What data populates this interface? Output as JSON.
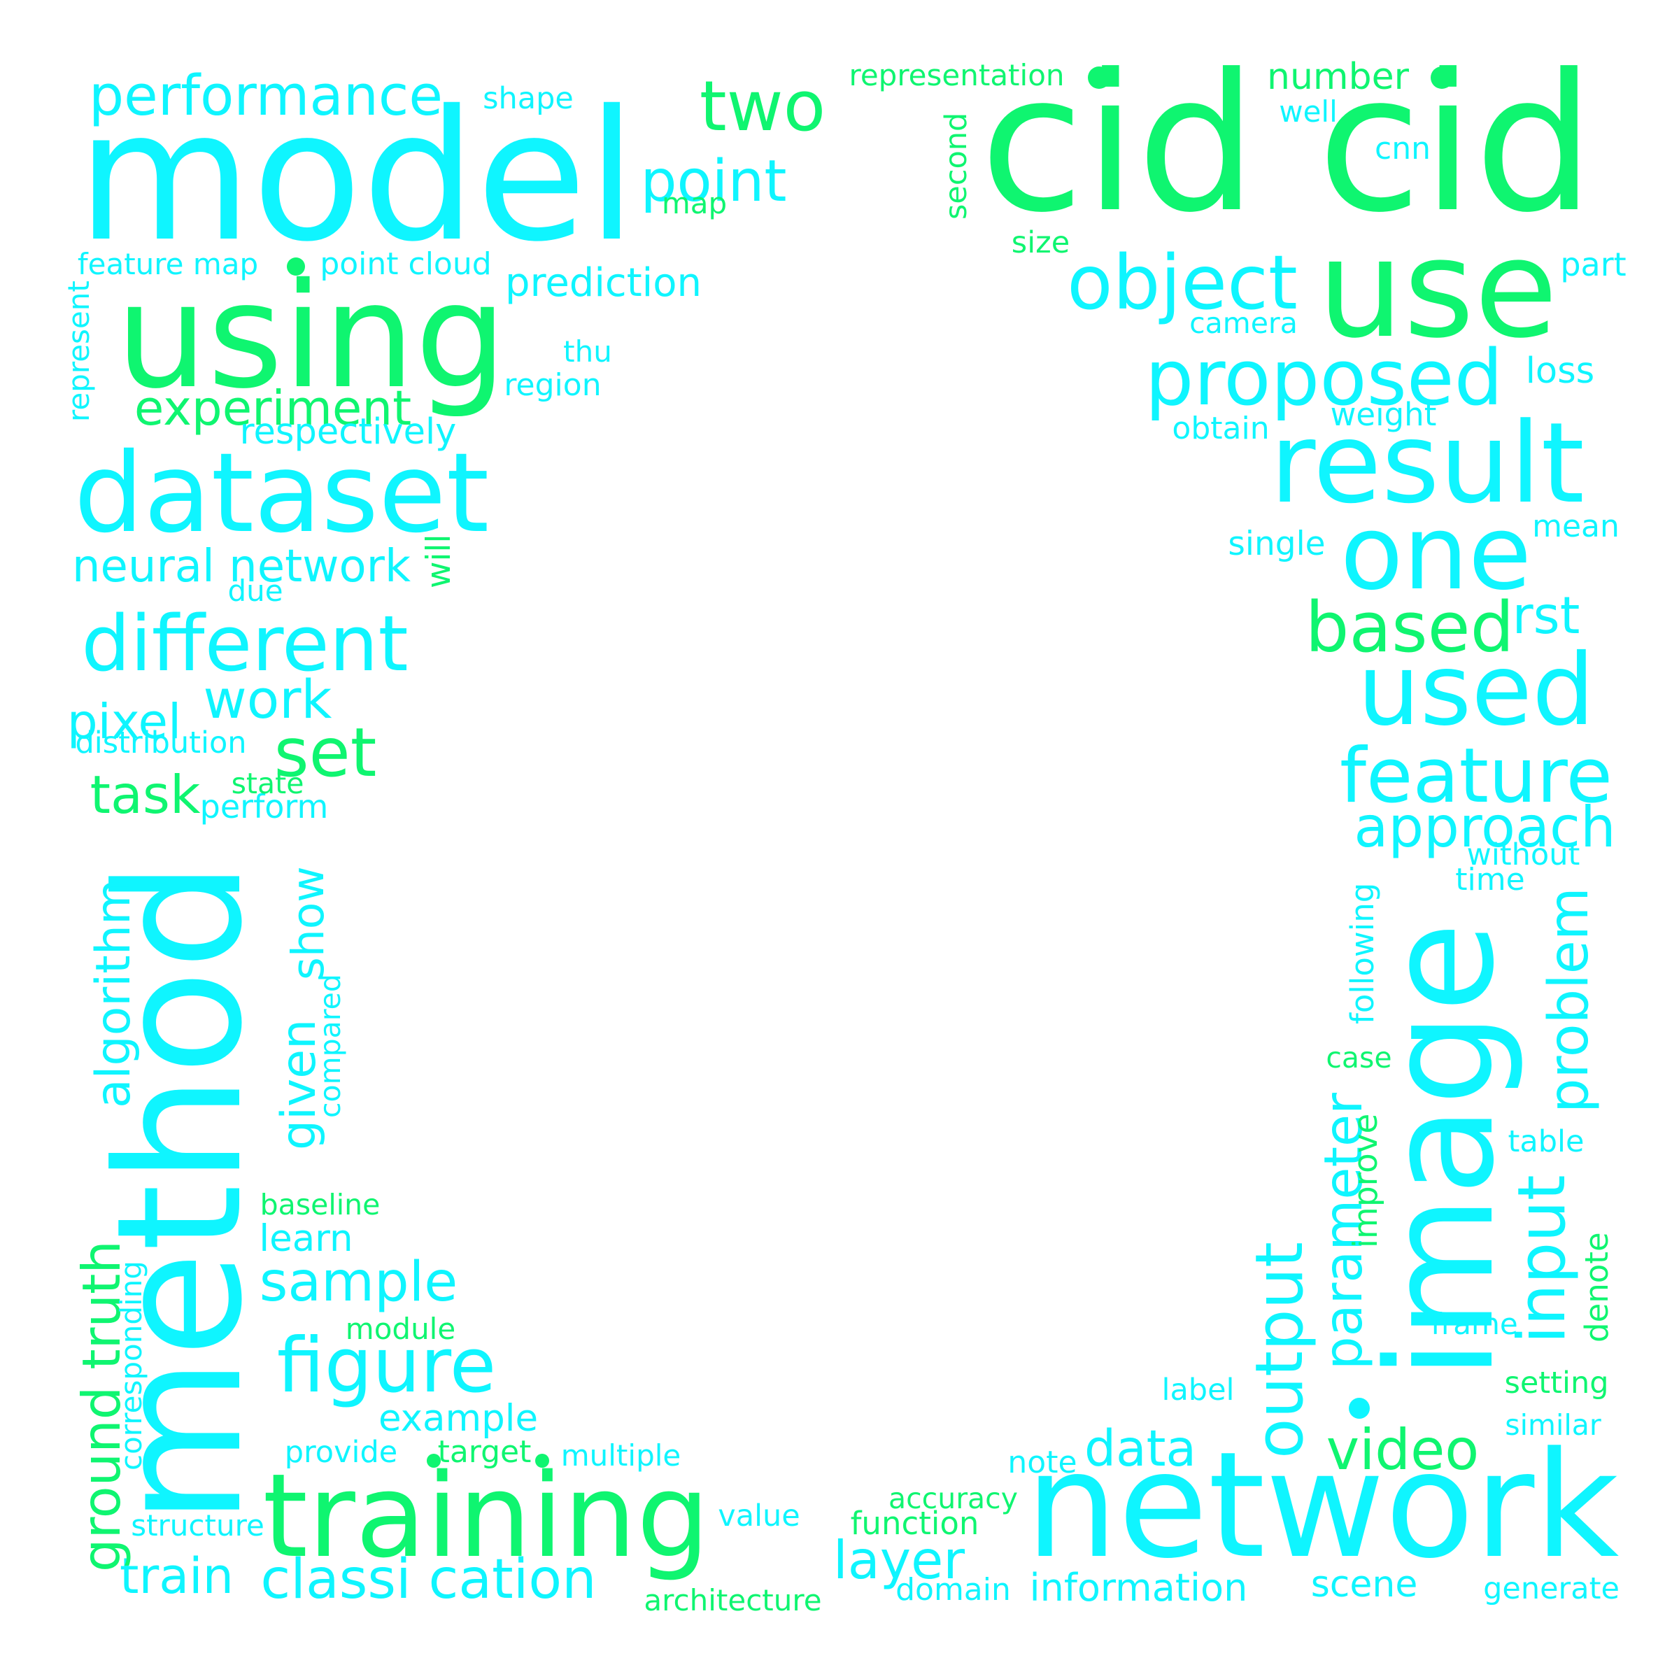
{
  "palette": {
    "cyan": "#0ff5ff",
    "green": "#0ff570"
  },
  "words": [
    {
      "text": "model",
      "color": "cyan",
      "v": false
    },
    {
      "text": "using",
      "color": "green",
      "v": false
    },
    {
      "text": "dataset",
      "color": "cyan",
      "v": false
    },
    {
      "text": "cid cid",
      "color": "green",
      "v": false
    },
    {
      "text": "use",
      "color": "green",
      "v": false
    },
    {
      "text": "network",
      "color": "cyan",
      "v": false
    },
    {
      "text": "training",
      "color": "green",
      "v": false
    },
    {
      "text": "method",
      "color": "cyan",
      "v": true
    },
    {
      "text": "image",
      "color": "cyan",
      "v": true
    },
    {
      "text": "result",
      "color": "cyan",
      "v": false
    },
    {
      "text": "one",
      "color": "cyan",
      "v": false
    },
    {
      "text": "used",
      "color": "cyan",
      "v": false
    },
    {
      "text": "proposed",
      "color": "cyan",
      "v": false
    },
    {
      "text": "feature",
      "color": "cyan",
      "v": false
    },
    {
      "text": "different",
      "color": "cyan",
      "v": false
    },
    {
      "text": "figure",
      "color": "cyan",
      "v": false
    },
    {
      "text": "object",
      "color": "cyan",
      "v": false
    },
    {
      "text": "classi cation",
      "color": "cyan",
      "v": false
    },
    {
      "text": "two",
      "color": "green",
      "v": false
    },
    {
      "text": "based",
      "color": "green",
      "v": false
    },
    {
      "text": "approach",
      "color": "cyan",
      "v": false
    },
    {
      "text": "performance",
      "color": "cyan",
      "v": false
    },
    {
      "text": "experiment",
      "color": "green",
      "v": false
    },
    {
      "text": "neural network",
      "color": "cyan",
      "v": false
    },
    {
      "text": "point",
      "color": "cyan",
      "v": false
    },
    {
      "text": "set",
      "color": "green",
      "v": false
    },
    {
      "text": "work",
      "color": "cyan",
      "v": false
    },
    {
      "text": "pixel",
      "color": "cyan",
      "v": false
    },
    {
      "text": "task",
      "color": "green",
      "v": false
    },
    {
      "text": "output",
      "color": "cyan",
      "v": true
    },
    {
      "text": "parameter",
      "color": "cyan",
      "v": true
    },
    {
      "text": "input",
      "color": "cyan",
      "v": true
    },
    {
      "text": "problem",
      "color": "cyan",
      "v": true
    },
    {
      "text": "video",
      "color": "green",
      "v": false
    },
    {
      "text": "data",
      "color": "cyan",
      "v": false
    },
    {
      "text": "layer",
      "color": "cyan",
      "v": false
    },
    {
      "text": "sample",
      "color": "cyan",
      "v": false
    },
    {
      "text": "train",
      "color": "cyan",
      "v": false
    },
    {
      "text": "ground truth",
      "color": "green",
      "v": true
    },
    {
      "text": "algorithm",
      "color": "cyan",
      "v": true
    },
    {
      "text": "given",
      "color": "cyan",
      "v": true
    },
    {
      "text": "show",
      "color": "cyan",
      "v": true
    },
    {
      "text": "prediction",
      "color": "cyan",
      "v": false
    },
    {
      "text": "respectively",
      "color": "cyan",
      "v": false
    },
    {
      "text": "information",
      "color": "cyan",
      "v": false
    },
    {
      "text": "example",
      "color": "cyan",
      "v": false
    },
    {
      "text": "rst",
      "color": "cyan",
      "v": false
    },
    {
      "text": "number",
      "color": "green",
      "v": false
    },
    {
      "text": "representation",
      "color": "green",
      "v": false
    },
    {
      "text": "learn",
      "color": "cyan",
      "v": false
    },
    {
      "text": "scene",
      "color": "cyan",
      "v": false
    },
    {
      "text": "loss",
      "color": "cyan",
      "v": false
    },
    {
      "text": "feature map",
      "color": "cyan",
      "v": false
    },
    {
      "text": "point cloud",
      "color": "cyan",
      "v": false
    },
    {
      "text": "distribution",
      "color": "cyan",
      "v": false
    },
    {
      "text": "perform",
      "color": "cyan",
      "v": false
    },
    {
      "text": "baseline",
      "color": "green",
      "v": false
    },
    {
      "text": "module",
      "color": "green",
      "v": false
    },
    {
      "text": "provide",
      "color": "cyan",
      "v": false
    },
    {
      "text": "target",
      "color": "green",
      "v": false
    },
    {
      "text": "multiple",
      "color": "cyan",
      "v": false
    },
    {
      "text": "structure",
      "color": "cyan",
      "v": false
    },
    {
      "text": "value",
      "color": "cyan",
      "v": false
    },
    {
      "text": "architecture",
      "color": "green",
      "v": false
    },
    {
      "text": "accuracy",
      "color": "green",
      "v": false
    },
    {
      "text": "function",
      "color": "green",
      "v": false
    },
    {
      "text": "domain",
      "color": "cyan",
      "v": false
    },
    {
      "text": "note",
      "color": "cyan",
      "v": false
    },
    {
      "text": "generate",
      "color": "cyan",
      "v": false
    },
    {
      "text": "similar",
      "color": "cyan",
      "v": false
    },
    {
      "text": "setting",
      "color": "green",
      "v": false
    },
    {
      "text": "frame",
      "color": "cyan",
      "v": false
    },
    {
      "text": "label",
      "color": "cyan",
      "v": false
    },
    {
      "text": "table",
      "color": "cyan",
      "v": false
    },
    {
      "text": "case",
      "color": "green",
      "v": false
    },
    {
      "text": "without",
      "color": "cyan",
      "v": false
    },
    {
      "text": "time",
      "color": "cyan",
      "v": false
    },
    {
      "text": "mean",
      "color": "cyan",
      "v": false
    },
    {
      "text": "single",
      "color": "cyan",
      "v": false
    },
    {
      "text": "weight",
      "color": "cyan",
      "v": false
    },
    {
      "text": "obtain",
      "color": "cyan",
      "v": false
    },
    {
      "text": "camera",
      "color": "cyan",
      "v": false
    },
    {
      "text": "part",
      "color": "cyan",
      "v": false
    },
    {
      "text": "size",
      "color": "green",
      "v": false
    },
    {
      "text": "cnn",
      "color": "cyan",
      "v": false
    },
    {
      "text": "well",
      "color": "cyan",
      "v": false
    },
    {
      "text": "shape",
      "color": "cyan",
      "v": false
    },
    {
      "text": "map",
      "color": "green",
      "v": false
    },
    {
      "text": "thu",
      "color": "cyan",
      "v": false
    },
    {
      "text": "region",
      "color": "cyan",
      "v": false
    },
    {
      "text": "state",
      "color": "green",
      "v": false
    },
    {
      "text": "due",
      "color": "cyan",
      "v": false
    },
    {
      "text": "will",
      "color": "green",
      "v": true
    },
    {
      "text": "represent",
      "color": "cyan",
      "v": true
    },
    {
      "text": "second",
      "color": "green",
      "v": true
    },
    {
      "text": "following",
      "color": "cyan",
      "v": true
    },
    {
      "text": "improve",
      "color": "green",
      "v": true
    },
    {
      "text": "denote",
      "color": "green",
      "v": true
    },
    {
      "text": "compared",
      "color": "cyan",
      "v": true
    },
    {
      "text": "corresponding",
      "color": "cyan",
      "v": true
    }
  ],
  "dots": [
    {
      "color": "green"
    },
    {
      "color": "green"
    },
    {
      "color": "green"
    },
    {
      "color": "green"
    },
    {
      "color": "green"
    },
    {
      "color": "cyan"
    }
  ]
}
